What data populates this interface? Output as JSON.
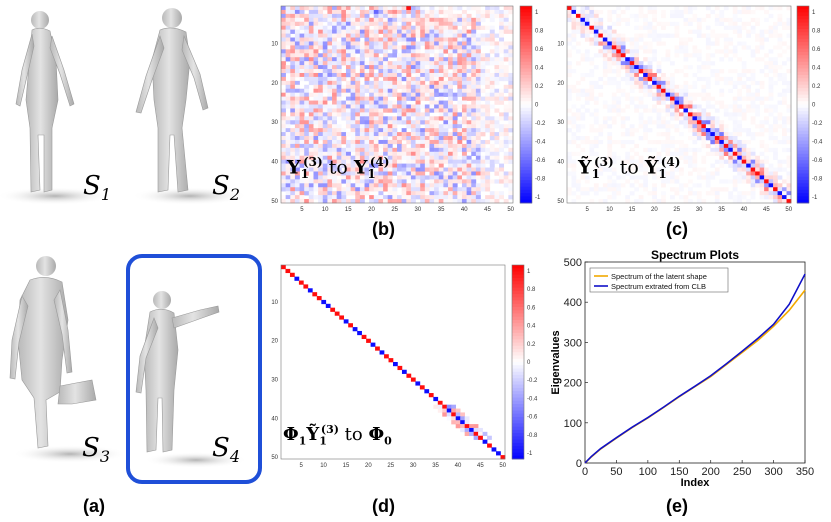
{
  "figure": {
    "panel_labels": {
      "a": "(a)",
      "b": "(b)",
      "c": "(c)",
      "d": "(d)",
      "e": "(e)"
    },
    "shape_labels": {
      "s1": "S",
      "s1_sub": "1",
      "s2": "S",
      "s2_sub": "2",
      "s3": "S",
      "s3_sub": "3",
      "s4": "S",
      "s4_sub": "4"
    },
    "matrix_b": {
      "text_main": "Y",
      "text_sub": "1",
      "text_sup": "(3)",
      "text_mid": " to ",
      "text_main2": "Y",
      "text_sub2": "1",
      "text_sup2": "(4)"
    },
    "matrix_c": {
      "text_main": "Ỹ",
      "text_sub": "1",
      "text_sup": "(3)",
      "text_mid": " to ",
      "text_main2": "Ỹ",
      "text_sub2": "1",
      "text_sup2": "(4)"
    },
    "matrix_d": {
      "text_a": "Φ",
      "text_a_sub": "1",
      "text_b": "Ỹ",
      "text_b_sub": "1",
      "text_b_sup": "(3)",
      "text_mid": " to ",
      "text_c": "Φ",
      "text_c_sub": "0"
    },
    "matrix_ticks": [
      "5",
      "10",
      "15",
      "20",
      "25",
      "30",
      "35",
      "40",
      "45",
      "50"
    ],
    "matrix_yticks": [
      "10",
      "20",
      "30",
      "40",
      "50"
    ],
    "colorbar_ticks": [
      "1",
      "0.8",
      "0.6",
      "0.4",
      "0.2",
      "0",
      "-0.2",
      "-0.4",
      "-0.6",
      "-0.8",
      "-1"
    ],
    "colors": {
      "positive": "#ff0000",
      "negative": "#0000ff",
      "neutral": "#ffffff",
      "highlight_box": "#1f4fd8",
      "latent": "#f2a900",
      "clb": "#1010c8"
    }
  },
  "chart_data": {
    "type": "line",
    "title": "Spectrum Plots",
    "xlabel": "Index",
    "ylabel": "Eigenvalues",
    "xlim": [
      0,
      350
    ],
    "ylim": [
      0,
      500
    ],
    "xticks": [
      0,
      50,
      100,
      150,
      200,
      250,
      300,
      350
    ],
    "yticks": [
      0,
      100,
      200,
      300,
      400,
      500
    ],
    "legend_position": "top-left",
    "series": [
      {
        "name": "Spectrum of the latent shape",
        "color": "#f2a900",
        "x": [
          0,
          10,
          25,
          50,
          75,
          100,
          125,
          150,
          175,
          200,
          225,
          250,
          275,
          300,
          325,
          350
        ],
        "y": [
          0,
          15,
          35,
          62,
          88,
          112,
          138,
          165,
          190,
          215,
          245,
          275,
          305,
          340,
          380,
          430
        ]
      },
      {
        "name": "Spectrum extrated from CLB",
        "color": "#1010c8",
        "x": [
          0,
          10,
          25,
          50,
          75,
          100,
          125,
          150,
          175,
          200,
          225,
          250,
          275,
          300,
          325,
          350
        ],
        "y": [
          0,
          16,
          36,
          63,
          89,
          113,
          139,
          166,
          191,
          217,
          247,
          278,
          310,
          345,
          395,
          470
        ]
      }
    ]
  }
}
